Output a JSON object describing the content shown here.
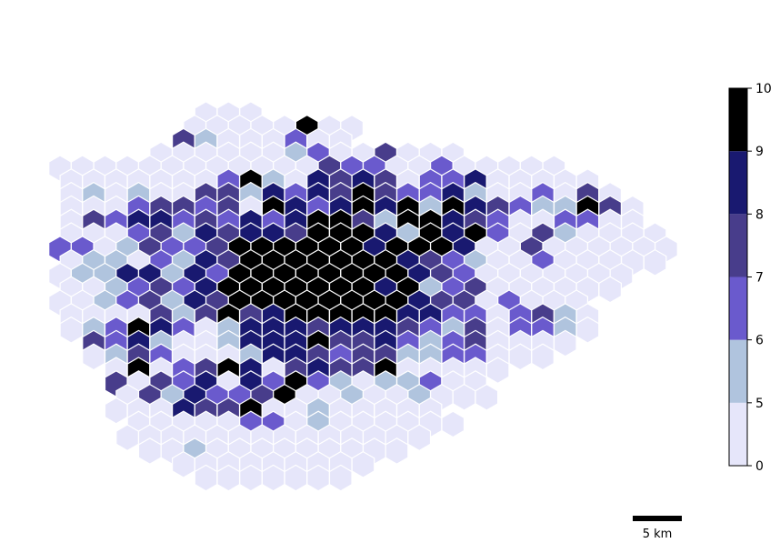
{
  "colorbar": {
    "boundaries": [
      0,
      5,
      6,
      7,
      8,
      9,
      10
    ],
    "tick_labels": [
      "0",
      "5",
      "6",
      "7",
      "8",
      "9",
      "10"
    ],
    "colors": [
      "#e6e6fa",
      "#b0c4de",
      "#6a5acd",
      "#483d8b",
      "#191970",
      "#000000"
    ]
  },
  "scale_bar": {
    "label": "5 km",
    "length_km": 5
  },
  "grid_rows": [
    {
      "start": 13,
      "parity": 0,
      "classes": [
        0,
        0,
        0
      ]
    },
    {
      "start": 11,
      "parity": 1,
      "classes": [
        0,
        0,
        0,
        0,
        0,
        5,
        0,
        0
      ]
    },
    {
      "start": 11,
      "parity": 0,
      "classes": [
        3,
        1,
        0,
        0,
        0,
        2,
        0,
        0
      ]
    },
    {
      "start": 8,
      "parity": 1,
      "classes": [
        0,
        0,
        0,
        0,
        0,
        0,
        1,
        2,
        0,
        0,
        3,
        0,
        0,
        0
      ]
    },
    {
      "start": 0,
      "parity": 0,
      "classes": [
        0,
        0,
        0,
        0,
        0,
        0,
        0,
        0,
        0,
        0,
        0,
        0,
        3,
        2,
        2,
        0,
        0,
        2,
        0,
        0,
        0,
        0,
        0
      ]
    },
    {
      "start": 0,
      "parity": 1,
      "classes": [
        0,
        0,
        0,
        0,
        0,
        0,
        0,
        2,
        5,
        1,
        0,
        4,
        3,
        4,
        3,
        0,
        2,
        2,
        4,
        0,
        0,
        0,
        0,
        0
      ]
    },
    {
      "start": 1,
      "parity": 0,
      "classes": [
        0,
        1,
        0,
        1,
        0,
        0,
        3,
        3,
        1,
        4,
        2,
        4,
        3,
        5,
        3,
        2,
        2,
        4,
        1,
        0,
        0,
        2,
        0,
        3,
        0
      ]
    },
    {
      "start": 0,
      "parity": 1,
      "classes": [
        0,
        0,
        0,
        2,
        3,
        3,
        2,
        3,
        0,
        5,
        4,
        2,
        4,
        5,
        4,
        5,
        1,
        5,
        4,
        3,
        2,
        1,
        1,
        5,
        3,
        0
      ]
    },
    {
      "start": 1,
      "parity": 0,
      "classes": [
        0,
        3,
        2,
        4,
        4,
        2,
        3,
        2,
        4,
        2,
        4,
        5,
        5,
        3,
        1,
        5,
        5,
        4,
        3,
        2,
        0,
        0,
        2,
        2,
        0,
        0
      ]
    },
    {
      "start": 0,
      "parity": 1,
      "classes": [
        0,
        0,
        0,
        2,
        3,
        1,
        4,
        3,
        4,
        4,
        3,
        5,
        5,
        5,
        4,
        1,
        5,
        4,
        5,
        2,
        0,
        3,
        1,
        0,
        0,
        0,
        0
      ]
    },
    {
      "start": 0,
      "parity": 0,
      "classes": [
        2,
        2,
        0,
        1,
        3,
        2,
        2,
        3,
        5,
        5,
        5,
        5,
        5,
        5,
        4,
        5,
        5,
        5,
        4,
        0,
        0,
        3,
        0,
        0,
        0,
        0,
        0,
        0
      ]
    },
    {
      "start": 0,
      "parity": 1,
      "classes": [
        0,
        1,
        1,
        0,
        2,
        1,
        4,
        3,
        5,
        5,
        5,
        5,
        5,
        5,
        5,
        4,
        3,
        2,
        1,
        0,
        0,
        2,
        0,
        0,
        0,
        0,
        0
      ]
    },
    {
      "start": 0,
      "parity": 0,
      "classes": [
        0,
        1,
        1,
        4,
        4,
        1,
        4,
        2,
        5,
        5,
        5,
        5,
        5,
        5,
        5,
        5,
        4,
        3,
        2,
        0,
        0,
        0,
        0,
        0,
        0,
        0
      ]
    },
    {
      "start": 0,
      "parity": 1,
      "classes": [
        0,
        0,
        1,
        2,
        3,
        2,
        4,
        5,
        5,
        5,
        5,
        5,
        5,
        5,
        4,
        5,
        1,
        2,
        3,
        0,
        0,
        0,
        0,
        0,
        0
      ]
    },
    {
      "start": 0,
      "parity": 0,
      "classes": [
        0,
        0,
        1,
        2,
        3,
        1,
        4,
        3,
        5,
        5,
        5,
        5,
        5,
        5,
        5,
        5,
        4,
        3,
        3,
        0,
        2,
        0,
        0,
        0
      ]
    },
    {
      "start": 0,
      "parity": 1,
      "classes": [
        0,
        0,
        0,
        0,
        3,
        1,
        3,
        5,
        3,
        4,
        5,
        5,
        5,
        5,
        5,
        4,
        4,
        2,
        2,
        0,
        2,
        3,
        1,
        0
      ]
    },
    {
      "start": 1,
      "parity": 0,
      "classes": [
        0,
        1,
        2,
        5,
        4,
        2,
        0,
        1,
        4,
        4,
        4,
        3,
        4,
        4,
        4,
        3,
        2,
        1,
        3,
        0,
        2,
        2,
        1,
        0
      ]
    },
    {
      "start": 2,
      "parity": 1,
      "classes": [
        3,
        2,
        4,
        1,
        0,
        0,
        1,
        4,
        4,
        4,
        5,
        3,
        3,
        4,
        2,
        1,
        2,
        3,
        0,
        0,
        0,
        0
      ]
    },
    {
      "start": 3,
      "parity": 0,
      "classes": [
        0,
        1,
        3,
        2,
        0,
        0,
        0,
        1,
        4,
        4,
        3,
        2,
        3,
        3,
        1,
        1,
        2,
        2,
        0,
        0,
        0
      ]
    },
    {
      "start": 4,
      "parity": 1,
      "classes": [
        0,
        5,
        0,
        2,
        3,
        5,
        4,
        0,
        3,
        4,
        3,
        3,
        5,
        0,
        0,
        0,
        0,
        0
      ]
    },
    {
      "start": 5,
      "parity": 0,
      "classes": [
        3,
        0,
        3,
        2,
        4,
        0,
        4,
        2,
        5,
        2,
        1,
        0,
        1,
        1,
        2,
        0,
        0
      ]
    },
    {
      "start": 5,
      "parity": 1,
      "classes": [
        0,
        3,
        1,
        4,
        2,
        2,
        3,
        5,
        0,
        0,
        1,
        0,
        0,
        1,
        0,
        0,
        0
      ]
    },
    {
      "start": 5,
      "parity": 0,
      "classes": [
        0,
        0,
        0,
        4,
        3,
        3,
        5,
        0,
        0,
        1,
        0,
        0,
        0,
        0,
        0
      ]
    },
    {
      "start": 6,
      "parity": 1,
      "classes": [
        0,
        0,
        0,
        0,
        0,
        2,
        2,
        0,
        1,
        0,
        0,
        0,
        0,
        0,
        0
      ]
    },
    {
      "start": 6,
      "parity": 0,
      "classes": [
        0,
        0,
        0,
        0,
        0,
        0,
        0,
        0,
        0,
        0,
        0,
        0,
        0,
        0
      ]
    },
    {
      "start": 7,
      "parity": 1,
      "classes": [
        0,
        0,
        1,
        0,
        0,
        0,
        0,
        0,
        0,
        0,
        0,
        0
      ]
    },
    {
      "start": 11,
      "parity": 0,
      "classes": [
        0,
        0,
        0,
        0,
        0,
        0,
        0,
        0,
        0
      ]
    },
    {
      "start": 12,
      "parity": 1,
      "classes": [
        0,
        0,
        0,
        0,
        0,
        0,
        0
      ]
    }
  ]
}
